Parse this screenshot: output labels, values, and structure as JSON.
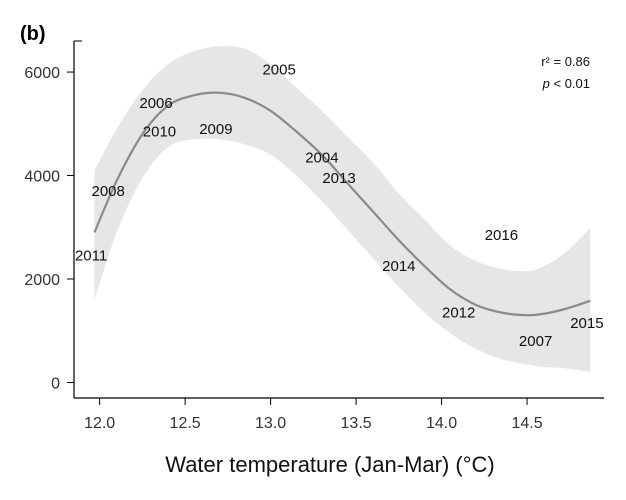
{
  "chart_data": {
    "type": "scatter",
    "panel_label": "(b)",
    "xlabel": "Water temperature (Jan-Mar) (°C)",
    "ylabel": "",
    "xlim": [
      11.85,
      14.95
    ],
    "ylim": [
      -300,
      6600
    ],
    "xticks": [
      12.0,
      12.5,
      13.0,
      13.5,
      14.0,
      14.5
    ],
    "xtick_labels": [
      "12.0",
      "12.5",
      "13.0",
      "13.5",
      "14.0",
      "14.5"
    ],
    "yticks": [
      0,
      2000,
      4000,
      6000
    ],
    "ytick_labels": [
      "0",
      "2000",
      "4000",
      "6000"
    ],
    "grid": false,
    "annotations": {
      "r2_label": "r² = 0.86",
      "p_label_italic": "p",
      "p_label_rest": " < 0.01"
    },
    "points": [
      {
        "label": "2011",
        "x": 11.95,
        "y": 2450
      },
      {
        "label": "2008",
        "x": 12.05,
        "y": 3700
      },
      {
        "label": "2006",
        "x": 12.33,
        "y": 5400
      },
      {
        "label": "2010",
        "x": 12.35,
        "y": 4850
      },
      {
        "label": "2009",
        "x": 12.68,
        "y": 4900
      },
      {
        "label": "2005",
        "x": 13.05,
        "y": 6050
      },
      {
        "label": "2004",
        "x": 13.3,
        "y": 4350
      },
      {
        "label": "2013",
        "x": 13.4,
        "y": 3950
      },
      {
        "label": "2014",
        "x": 13.75,
        "y": 2250
      },
      {
        "label": "2016",
        "x": 14.35,
        "y": 2850
      },
      {
        "label": "2012",
        "x": 14.1,
        "y": 1350
      },
      {
        "label": "2007",
        "x": 14.55,
        "y": 800
      },
      {
        "label": "2015",
        "x": 14.85,
        "y": 1150
      }
    ],
    "fit_curve": {
      "x": [
        11.97,
        12.1,
        12.25,
        12.4,
        12.55,
        12.7,
        12.85,
        13.0,
        13.15,
        13.3,
        13.45,
        13.6,
        13.75,
        13.9,
        14.05,
        14.2,
        14.35,
        14.5,
        14.6,
        14.7,
        14.8,
        14.87
      ],
      "y": [
        2900,
        3900,
        4800,
        5350,
        5550,
        5600,
        5500,
        5250,
        4850,
        4400,
        3850,
        3300,
        2750,
        2250,
        1800,
        1500,
        1350,
        1300,
        1330,
        1400,
        1500,
        1580
      ],
      "lower": [
        1600,
        2900,
        3950,
        4550,
        4700,
        4700,
        4600,
        4400,
        4000,
        3500,
        2950,
        2400,
        1850,
        1350,
        950,
        650,
        450,
        350,
        300,
        280,
        240,
        200
      ],
      "upper": [
        4100,
        4900,
        5650,
        6150,
        6400,
        6500,
        6450,
        6150,
        5700,
        5250,
        4750,
        4250,
        3650,
        3150,
        2650,
        2350,
        2200,
        2150,
        2250,
        2450,
        2750,
        3000
      ]
    },
    "colors": {
      "band": "#e6e6e6",
      "curve": "#8a8a8a",
      "axis": "#000000"
    }
  }
}
